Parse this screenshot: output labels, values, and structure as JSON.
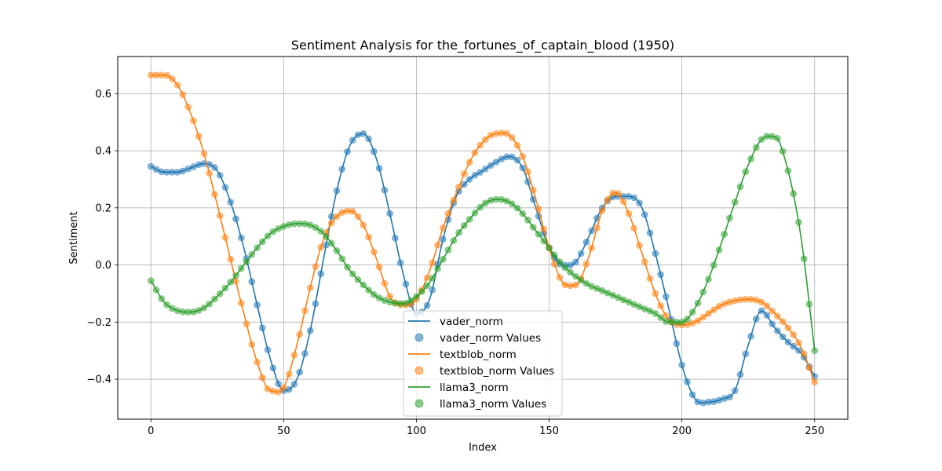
{
  "chart_data": {
    "type": "line",
    "title": "Sentiment Analysis for the_fortunes_of_captain_blood (1950)",
    "xlabel": "Index",
    "ylabel": "Sentiment",
    "xlim": [
      -12.5,
      262.5
    ],
    "ylim": [
      -0.54,
      0.73
    ],
    "xticks": [
      0,
      50,
      100,
      150,
      200,
      250
    ],
    "yticks": [
      -0.4,
      -0.2,
      0.0,
      0.2,
      0.4,
      0.6
    ],
    "xtick_labels": [
      "0",
      "50",
      "100",
      "150",
      "200",
      "250"
    ],
    "ytick_labels": [
      "−0.4",
      "−0.2",
      "0.0",
      "0.2",
      "0.4",
      "0.6"
    ],
    "grid": true,
    "legend_position": "lower center",
    "x_start": 0,
    "x_end": 250,
    "marker_every": 2,
    "series": [
      {
        "name": "vader_norm",
        "scatter_name": "vader_norm Values",
        "color": "#1f77b4",
        "x": [
          0,
          5,
          10,
          15,
          20,
          25,
          30,
          35,
          40,
          45,
          50,
          55,
          60,
          65,
          70,
          75,
          80,
          85,
          90,
          95,
          100,
          105,
          110,
          115,
          120,
          125,
          130,
          135,
          140,
          145,
          150,
          155,
          160,
          165,
          170,
          175,
          180,
          185,
          190,
          195,
          200,
          205,
          210,
          215,
          220,
          225,
          230,
          235,
          240,
          245,
          250
        ],
        "values": [
          0.345,
          0.325,
          0.325,
          0.34,
          0.355,
          0.33,
          0.22,
          0.06,
          -0.14,
          -0.33,
          -0.44,
          -0.4,
          -0.23,
          0.02,
          0.26,
          0.42,
          0.46,
          0.37,
          0.18,
          -0.03,
          -0.17,
          -0.12,
          0.09,
          0.24,
          0.3,
          0.33,
          0.36,
          0.38,
          0.34,
          0.2,
          0.06,
          0.0,
          0.01,
          0.1,
          0.2,
          0.24,
          0.24,
          0.2,
          0.04,
          -0.15,
          -0.35,
          -0.47,
          -0.48,
          -0.47,
          -0.44,
          -0.28,
          -0.16,
          -0.22,
          -0.27,
          -0.31,
          -0.39
        ]
      },
      {
        "name": "textblob_norm",
        "scatter_name": "textblob_norm Values",
        "color": "#ff7f0e",
        "x": [
          0,
          5,
          10,
          15,
          20,
          25,
          30,
          35,
          40,
          45,
          50,
          55,
          60,
          65,
          70,
          75,
          80,
          85,
          90,
          95,
          100,
          105,
          110,
          115,
          120,
          125,
          130,
          135,
          140,
          145,
          150,
          155,
          160,
          165,
          170,
          175,
          180,
          185,
          190,
          195,
          200,
          205,
          210,
          215,
          220,
          225,
          230,
          235,
          240,
          245,
          250
        ],
        "values": [
          0.665,
          0.665,
          0.63,
          0.53,
          0.39,
          0.21,
          0.02,
          -0.17,
          -0.34,
          -0.44,
          -0.43,
          -0.28,
          -0.08,
          0.09,
          0.17,
          0.19,
          0.14,
          0.02,
          -0.11,
          -0.14,
          -0.12,
          -0.02,
          0.13,
          0.25,
          0.36,
          0.43,
          0.46,
          0.455,
          0.38,
          0.23,
          0.06,
          -0.06,
          -0.07,
          0.03,
          0.19,
          0.255,
          0.18,
          0.04,
          -0.1,
          -0.19,
          -0.21,
          -0.2,
          -0.17,
          -0.14,
          -0.125,
          -0.12,
          -0.13,
          -0.17,
          -0.22,
          -0.29,
          -0.41
        ]
      },
      {
        "name": "llama3_norm",
        "scatter_name": "llama3_norm Values",
        "color": "#2ca02c",
        "x": [
          0,
          5,
          10,
          15,
          20,
          25,
          30,
          35,
          40,
          45,
          50,
          55,
          60,
          65,
          70,
          75,
          80,
          85,
          90,
          95,
          100,
          105,
          110,
          115,
          120,
          125,
          130,
          135,
          140,
          145,
          150,
          155,
          160,
          165,
          170,
          175,
          180,
          185,
          190,
          195,
          200,
          205,
          210,
          215,
          220,
          225,
          230,
          235,
          240,
          245,
          250
        ],
        "values": [
          -0.055,
          -0.13,
          -0.16,
          -0.165,
          -0.15,
          -0.11,
          -0.06,
          0.0,
          0.06,
          0.11,
          0.135,
          0.145,
          0.14,
          0.11,
          0.05,
          -0.02,
          -0.07,
          -0.11,
          -0.13,
          -0.135,
          -0.11,
          -0.06,
          0.02,
          0.1,
          0.16,
          0.21,
          0.23,
          0.22,
          0.18,
          0.12,
          0.06,
          0.0,
          -0.04,
          -0.07,
          -0.09,
          -0.11,
          -0.13,
          -0.15,
          -0.17,
          -0.2,
          -0.2,
          -0.15,
          -0.05,
          0.08,
          0.22,
          0.35,
          0.44,
          0.45,
          0.33,
          0.09,
          -0.3
        ]
      }
    ]
  }
}
